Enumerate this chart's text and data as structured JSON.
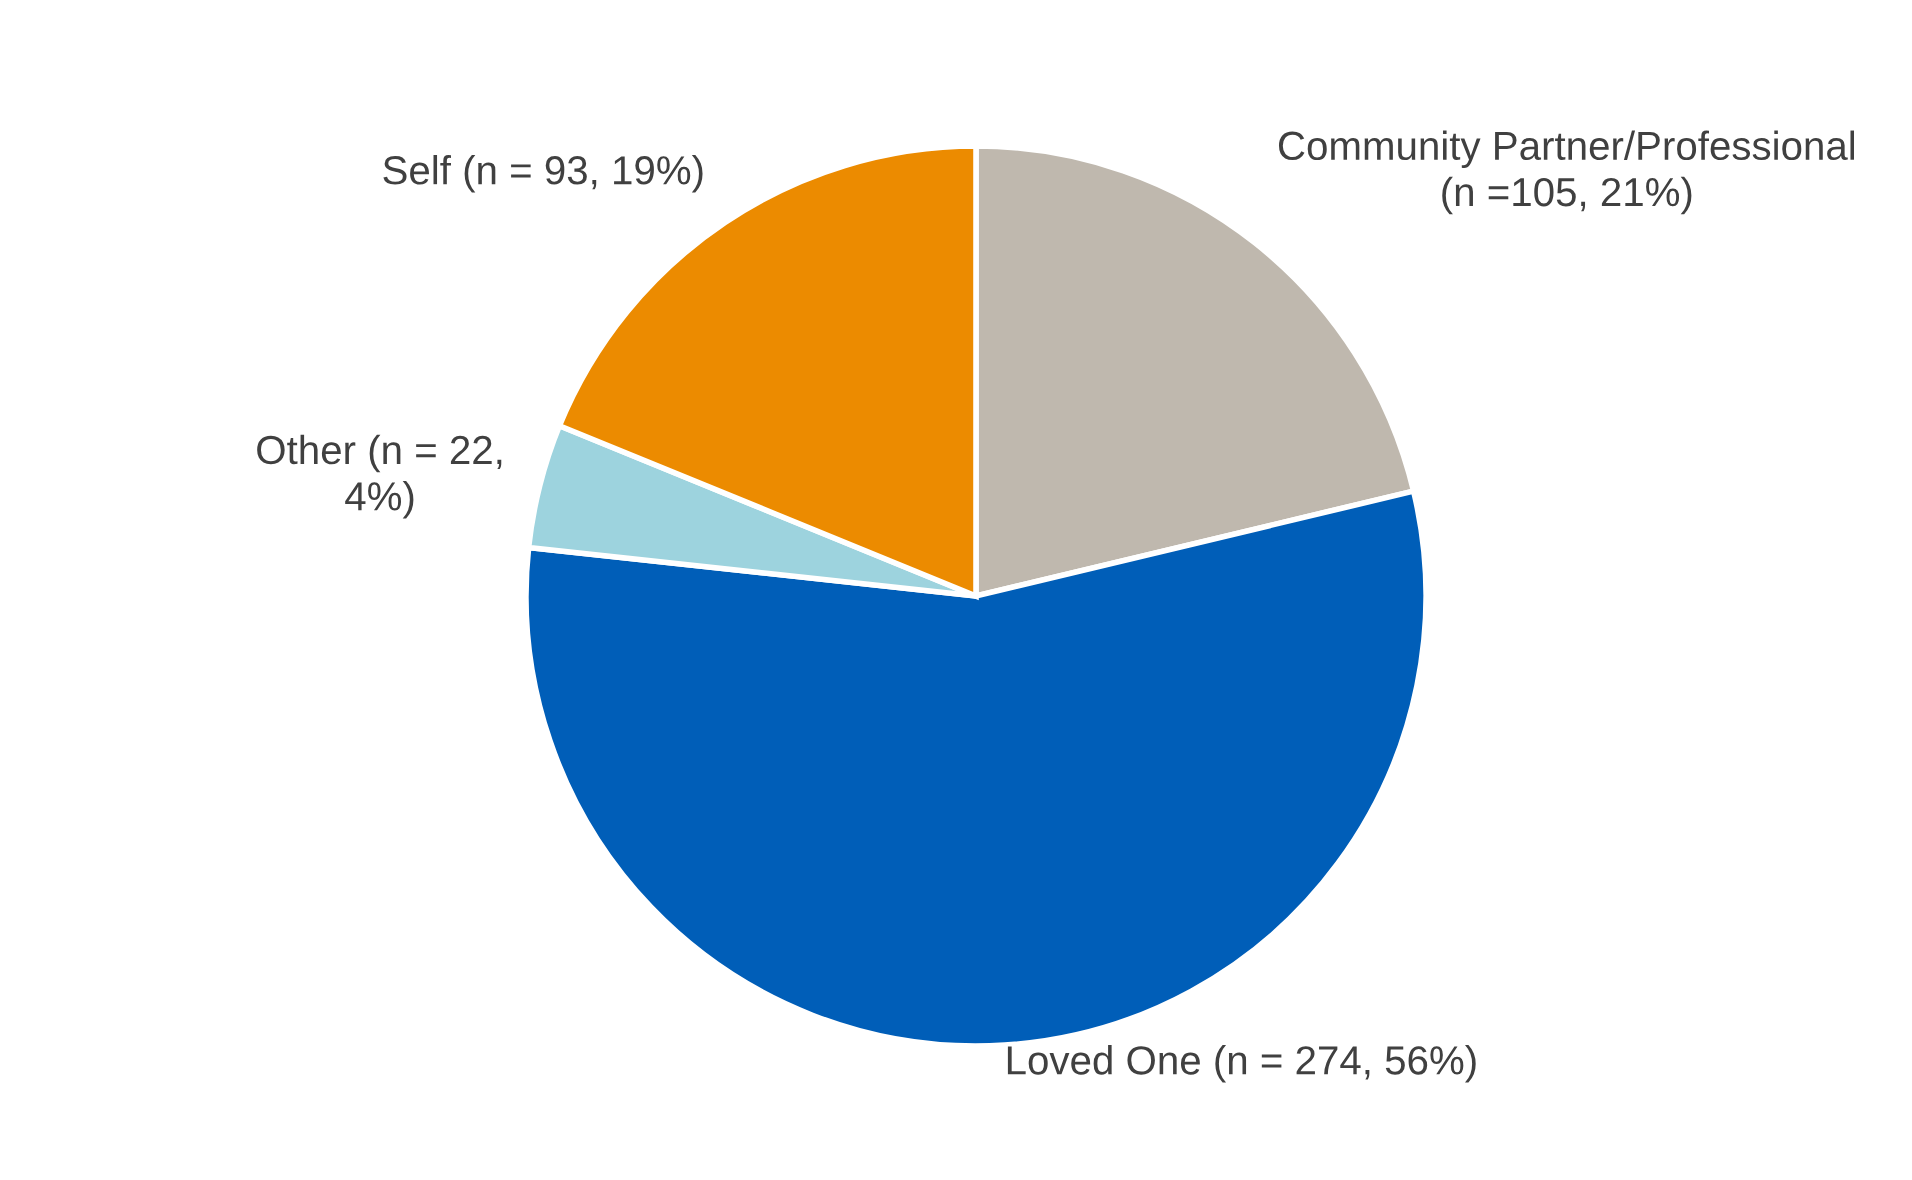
{
  "chart_data": {
    "type": "pie",
    "categories": [
      "Community Partner/Professional\n(n =105, 21%)",
      "Loved One (n = 274, 56%)",
      "Other (n = 22,\n4%)",
      "Self (n = 93, 19%)"
    ],
    "values": [
      105,
      274,
      22,
      93
    ],
    "colors": [
      "#bfb8ae",
      "#005eb8",
      "#9dd3de",
      "#ec8b00"
    ]
  }
}
